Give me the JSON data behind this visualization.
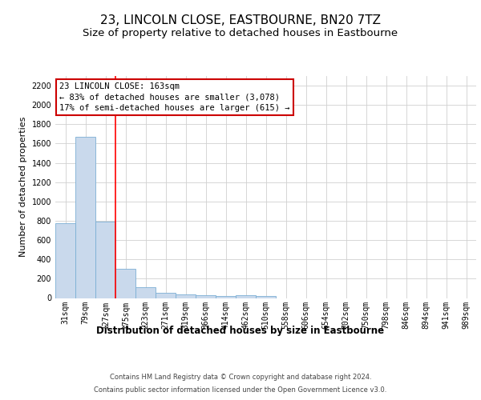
{
  "title": "23, LINCOLN CLOSE, EASTBOURNE, BN20 7TZ",
  "subtitle": "Size of property relative to detached houses in Eastbourne",
  "xlabel": "Distribution of detached houses by size in Eastbourne",
  "ylabel": "Number of detached properties",
  "categories": [
    "31sqm",
    "79sqm",
    "127sqm",
    "175sqm",
    "223sqm",
    "271sqm",
    "319sqm",
    "366sqm",
    "414sqm",
    "462sqm",
    "510sqm",
    "558sqm",
    "606sqm",
    "654sqm",
    "702sqm",
    "750sqm",
    "798sqm",
    "846sqm",
    "894sqm",
    "941sqm",
    "989sqm"
  ],
  "values": [
    775,
    1670,
    790,
    305,
    115,
    50,
    40,
    30,
    20,
    25,
    20,
    0,
    0,
    0,
    0,
    0,
    0,
    0,
    0,
    0,
    0
  ],
  "bar_color": "#c9d9ec",
  "bar_edge_color": "#7bafd4",
  "redline_x": 2.5,
  "ylim": [
    0,
    2300
  ],
  "yticks": [
    0,
    200,
    400,
    600,
    800,
    1000,
    1200,
    1400,
    1600,
    1800,
    2000,
    2200
  ],
  "annotation_text": "23 LINCOLN CLOSE: 163sqm\n← 83% of detached houses are smaller (3,078)\n17% of semi-detached houses are larger (615) →",
  "annotation_box_color": "#ffffff",
  "annotation_box_edge": "#cc0000",
  "footer_line1": "Contains HM Land Registry data © Crown copyright and database right 2024.",
  "footer_line2": "Contains public sector information licensed under the Open Government Licence v3.0.",
  "grid_color": "#d0d0d0",
  "title_fontsize": 11,
  "subtitle_fontsize": 9.5,
  "tick_fontsize": 7,
  "ylabel_fontsize": 8,
  "xlabel_fontsize": 8.5,
  "annotation_fontsize": 7.5,
  "footer_fontsize": 6
}
